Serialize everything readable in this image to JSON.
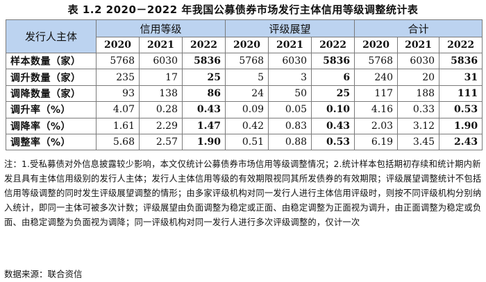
{
  "title": "表 1.2    2020－2022 年我国公募债券市场发行主体信用等级调整统计表",
  "table": {
    "row_header": "发行人主体",
    "groups": [
      "信用等级",
      "评级展望",
      "合计"
    ],
    "years": [
      "2020",
      "2021",
      "2022",
      "2020",
      "2021",
      "2022",
      "2020",
      "2021",
      "2022"
    ],
    "rows": [
      {
        "label": "样本数量（家）",
        "values": [
          "5768",
          "6030",
          "5836",
          "5768",
          "6030",
          "5836",
          "5768",
          "6030",
          "5836"
        ]
      },
      {
        "label": "调升数量（家）",
        "values": [
          "235",
          "17",
          "25",
          "5",
          "3",
          "6",
          "240",
          "20",
          "31"
        ]
      },
      {
        "label": "调降数量（家）",
        "values": [
          "93",
          "138",
          "86",
          "24",
          "50",
          "25",
          "117",
          "188",
          "111"
        ]
      },
      {
        "label": "调升率（%）",
        "values": [
          "4.07",
          "0.28",
          "0.43",
          "0.09",
          "0.05",
          "0.10",
          "4.16",
          "0.33",
          "0.53"
        ]
      },
      {
        "label": "调降率（%）",
        "values": [
          "1.61",
          "2.29",
          "1.47",
          "0.42",
          "0.83",
          "0.43",
          "2.03",
          "3.12",
          "1.90"
        ]
      },
      {
        "label": "调整率（%）",
        "values": [
          "5.68",
          "2.57",
          "1.90",
          "0.51",
          "0.88",
          "0.53",
          "6.19",
          "3.45",
          "2.43"
        ]
      }
    ]
  },
  "note": "注：1.受私募债对外信息披露较少影响，本文仅统计公募债券市场信用等级调整情况；2.统计样本包括期初存续和统计期内新发且具有主体信用级别的发行人主体；发行人主体信用等级的有效期限视同其所发债券的有效期限；评级展望调整统计不包括信用等级调整的同时发生评级展望调整的情形；由多家评级机构对同一发行人进行主体信用评级时，则按不同评级机构分别纳入统计，即同一主体可被多次计数；评级展望由负面调整为稳定或正面、由稳定调整为正面视为调升，由正面调整为稳定或负面、由稳定调整为负面视为调降；同一评级机构对同一发行人进行多次评级调整的，仅计一次",
  "source": "数据来源：联合资信"
}
